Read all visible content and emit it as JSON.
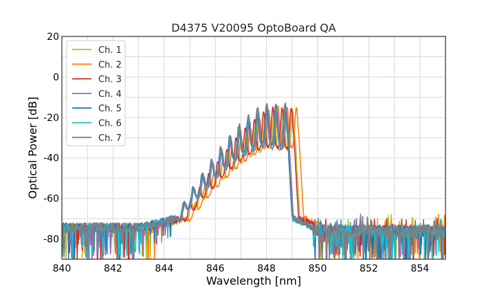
{
  "chart_data": {
    "type": "line",
    "title": "D4375 V20095 OptoBoard QA",
    "xlabel": "Wavelength [nm]",
    "ylabel": "Optical Power [dB]",
    "xlim": [
      840,
      855
    ],
    "ylim": [
      -90,
      20
    ],
    "xticks": [
      840,
      842,
      844,
      846,
      848,
      850,
      852,
      854
    ],
    "yticks": [
      20,
      0,
      -20,
      -40,
      -60,
      -80
    ],
    "grid": true,
    "legend_position": "top-left",
    "series": [
      {
        "name": "Ch. 1",
        "color": "#bcbd22",
        "shift": 0.3,
        "peak": -15.5
      },
      {
        "name": "Ch. 2",
        "color": "#ff7f0e",
        "shift": 0.45,
        "peak": -14.0
      },
      {
        "name": "Ch. 3",
        "color": "#d62728",
        "shift": 0.25,
        "peak": -14.5
      },
      {
        "name": "Ch. 4",
        "color": "#9467bd",
        "shift": 0.05,
        "peak": -15.0
      },
      {
        "name": "Ch. 5",
        "color": "#1f77b4",
        "shift": 0.0,
        "peak": -13.0
      },
      {
        "name": "Ch. 6",
        "color": "#17becf",
        "shift": 0.03,
        "peak": -14.0
      },
      {
        "name": "Ch. 7",
        "color": "#7f7f7f",
        "shift": 0.02,
        "peak": -12.5
      }
    ]
  }
}
